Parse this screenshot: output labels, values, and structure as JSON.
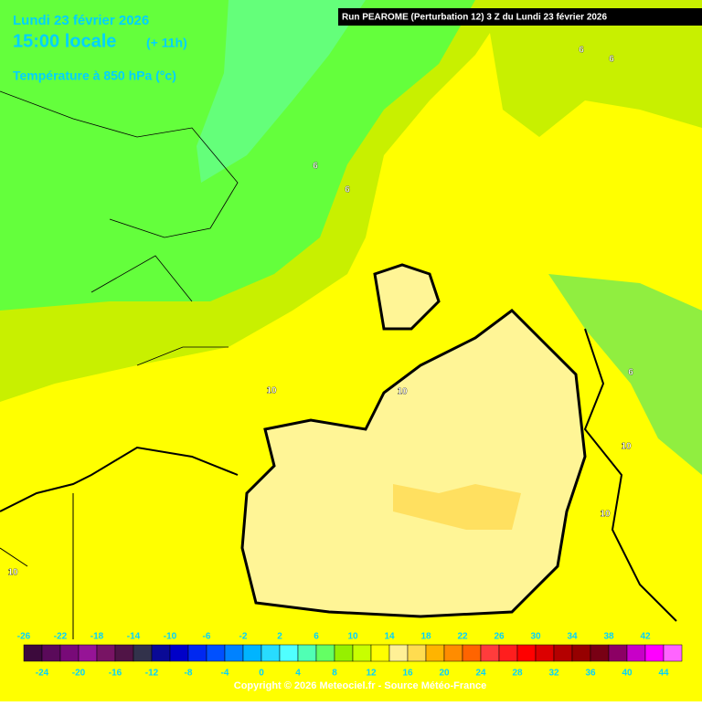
{
  "header": {
    "date": "Lundi 23 février 2026",
    "time": "15:00 locale",
    "lead": "(+ 11h)",
    "parameter": "Température à 850 hPa (°c)",
    "run": "Run PEAROME (Perturbation 12) 3 Z du Lundi 23 février 2026"
  },
  "contour_labels": [
    "6",
    "6",
    "6",
    "6",
    "6",
    "10",
    "10",
    "10",
    "10",
    "10"
  ],
  "legend": {
    "ticks": [
      -26,
      -24,
      -22,
      -20,
      -18,
      -16,
      -14,
      -12,
      -10,
      -8,
      -6,
      -4,
      -2,
      0,
      2,
      4,
      6,
      8,
      10,
      12,
      14,
      16,
      18,
      20,
      22,
      24,
      26,
      28,
      30,
      32,
      34,
      36,
      38,
      40,
      42,
      44
    ],
    "colors": [
      "#3c0a3c",
      "#5a0a5a",
      "#780a78",
      "#961496",
      "#781464",
      "#501446",
      "#32324b",
      "#0a0a96",
      "#0000c8",
      "#0028f0",
      "#0050ff",
      "#0082ff",
      "#00b4ff",
      "#28dcff",
      "#50ffff",
      "#50ffb4",
      "#64ff64",
      "#96f000",
      "#c8ff00",
      "#ffff00",
      "#fff096",
      "#ffdc50",
      "#ffb400",
      "#ff8c00",
      "#ff6400",
      "#ff3c3c",
      "#ff1e1e",
      "#ff0000",
      "#dc0000",
      "#b40000",
      "#960000",
      "#780014",
      "#8c0064",
      "#c800c8",
      "#ff00ff",
      "#ff64ff"
    ]
  },
  "footer": {
    "copyright": "Copyright © 2026 Meteociel.fr - Source Météo-France"
  }
}
